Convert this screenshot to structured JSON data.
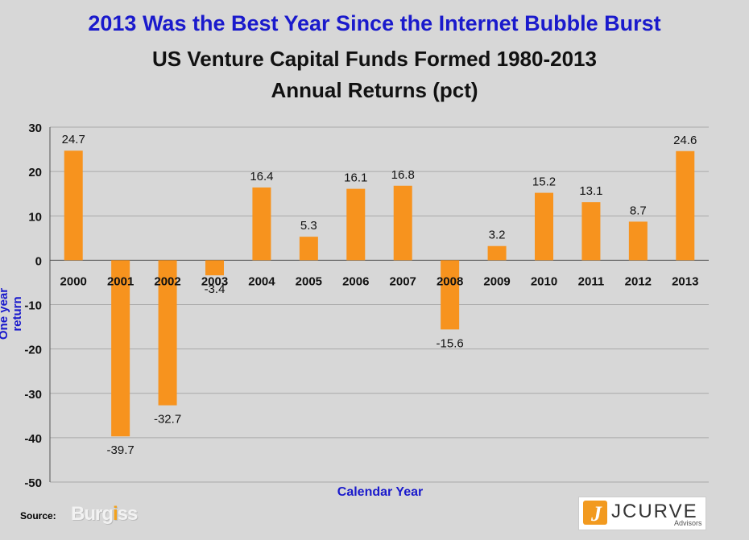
{
  "titles": {
    "line1": "2013 Was the Best Year Since the Internet Bubble Burst",
    "line2": "US Venture Capital Funds Formed 1980-2013",
    "line3": "Annual Returns (pct)"
  },
  "footer": {
    "source_label": "Source:",
    "source_logo": "Burgiss",
    "brand_logo": "JCURVE",
    "brand_sub": "Advisors"
  },
  "colors": {
    "bar": "#f7931e",
    "title_accent": "#1a1acc",
    "background": "#d7d7d7"
  },
  "chart_data": {
    "type": "bar",
    "xlabel": "Calendar Year",
    "ylabel": "One year return",
    "ylim": [
      -50,
      30
    ],
    "yticks": [
      30,
      20,
      10,
      0,
      -10,
      -20,
      -30,
      -40,
      -50
    ],
    "grid": true,
    "categories": [
      "2000",
      "2001",
      "2002",
      "2003",
      "2004",
      "2005",
      "2006",
      "2007",
      "2008",
      "2009",
      "2010",
      "2011",
      "2012",
      "2013"
    ],
    "values": [
      24.7,
      -39.7,
      -32.7,
      -3.4,
      16.4,
      5.3,
      16.1,
      16.8,
      -15.6,
      3.2,
      15.2,
      13.1,
      8.7,
      24.6
    ],
    "data_labels": [
      "24.7",
      "-39.7",
      "-32.7",
      "-3.4",
      "16.4",
      "5.3",
      "16.1",
      "16.8",
      "-15.6",
      "3.2",
      "15.2",
      "13.1",
      "8.7",
      "24.6"
    ]
  }
}
